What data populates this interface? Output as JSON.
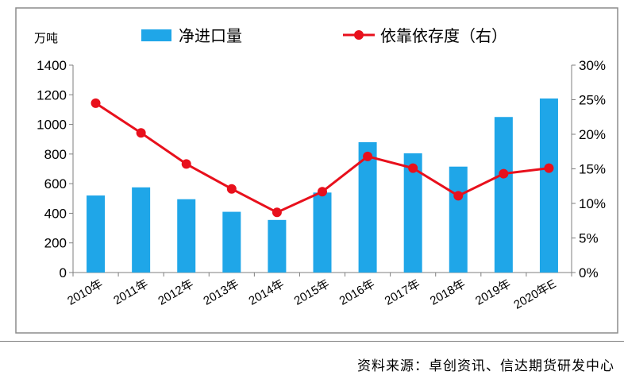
{
  "chart_data": {
    "type": "bar+line",
    "categories": [
      "2010年",
      "2011年",
      "2012年",
      "2013年",
      "2014年",
      "2015年",
      "2016年",
      "2017年",
      "2018年",
      "2019年",
      "2020年E"
    ],
    "series": [
      {
        "name": "净进口量",
        "type": "bar",
        "axis": "left",
        "color": "#1fa6e8",
        "values": [
          520,
          575,
          495,
          410,
          355,
          540,
          880,
          805,
          715,
          1050,
          1175
        ]
      },
      {
        "name": "依靠依存度(右)",
        "type": "line",
        "axis": "right",
        "color": "#e8101c",
        "values": [
          24.5,
          20.2,
          15.7,
          12.1,
          8.7,
          11.7,
          16.8,
          15.1,
          11.1,
          14.3,
          15.1
        ]
      }
    ],
    "ylabel": "万吨",
    "ylim": [
      0,
      1400
    ],
    "yticks": [
      0,
      200,
      400,
      600,
      800,
      1000,
      1200,
      1400
    ],
    "y2lim": [
      0,
      30
    ],
    "y2ticks": [
      "0%",
      "5%",
      "10%",
      "15%",
      "20%",
      "25%",
      "30%"
    ],
    "legend": [
      "净进口量",
      "依靠依存度(右)"
    ],
    "legend_display": [
      "净进口量",
      "依靠依存度（右）"
    ],
    "legend_position": "top-center",
    "grid": false
  },
  "footer": {
    "source": "资料来源：卓创资讯、信达期货研发中心"
  },
  "colors": {
    "bar": "#1fa6e8",
    "line": "#e8101c",
    "axis": "#7f7f7f"
  }
}
